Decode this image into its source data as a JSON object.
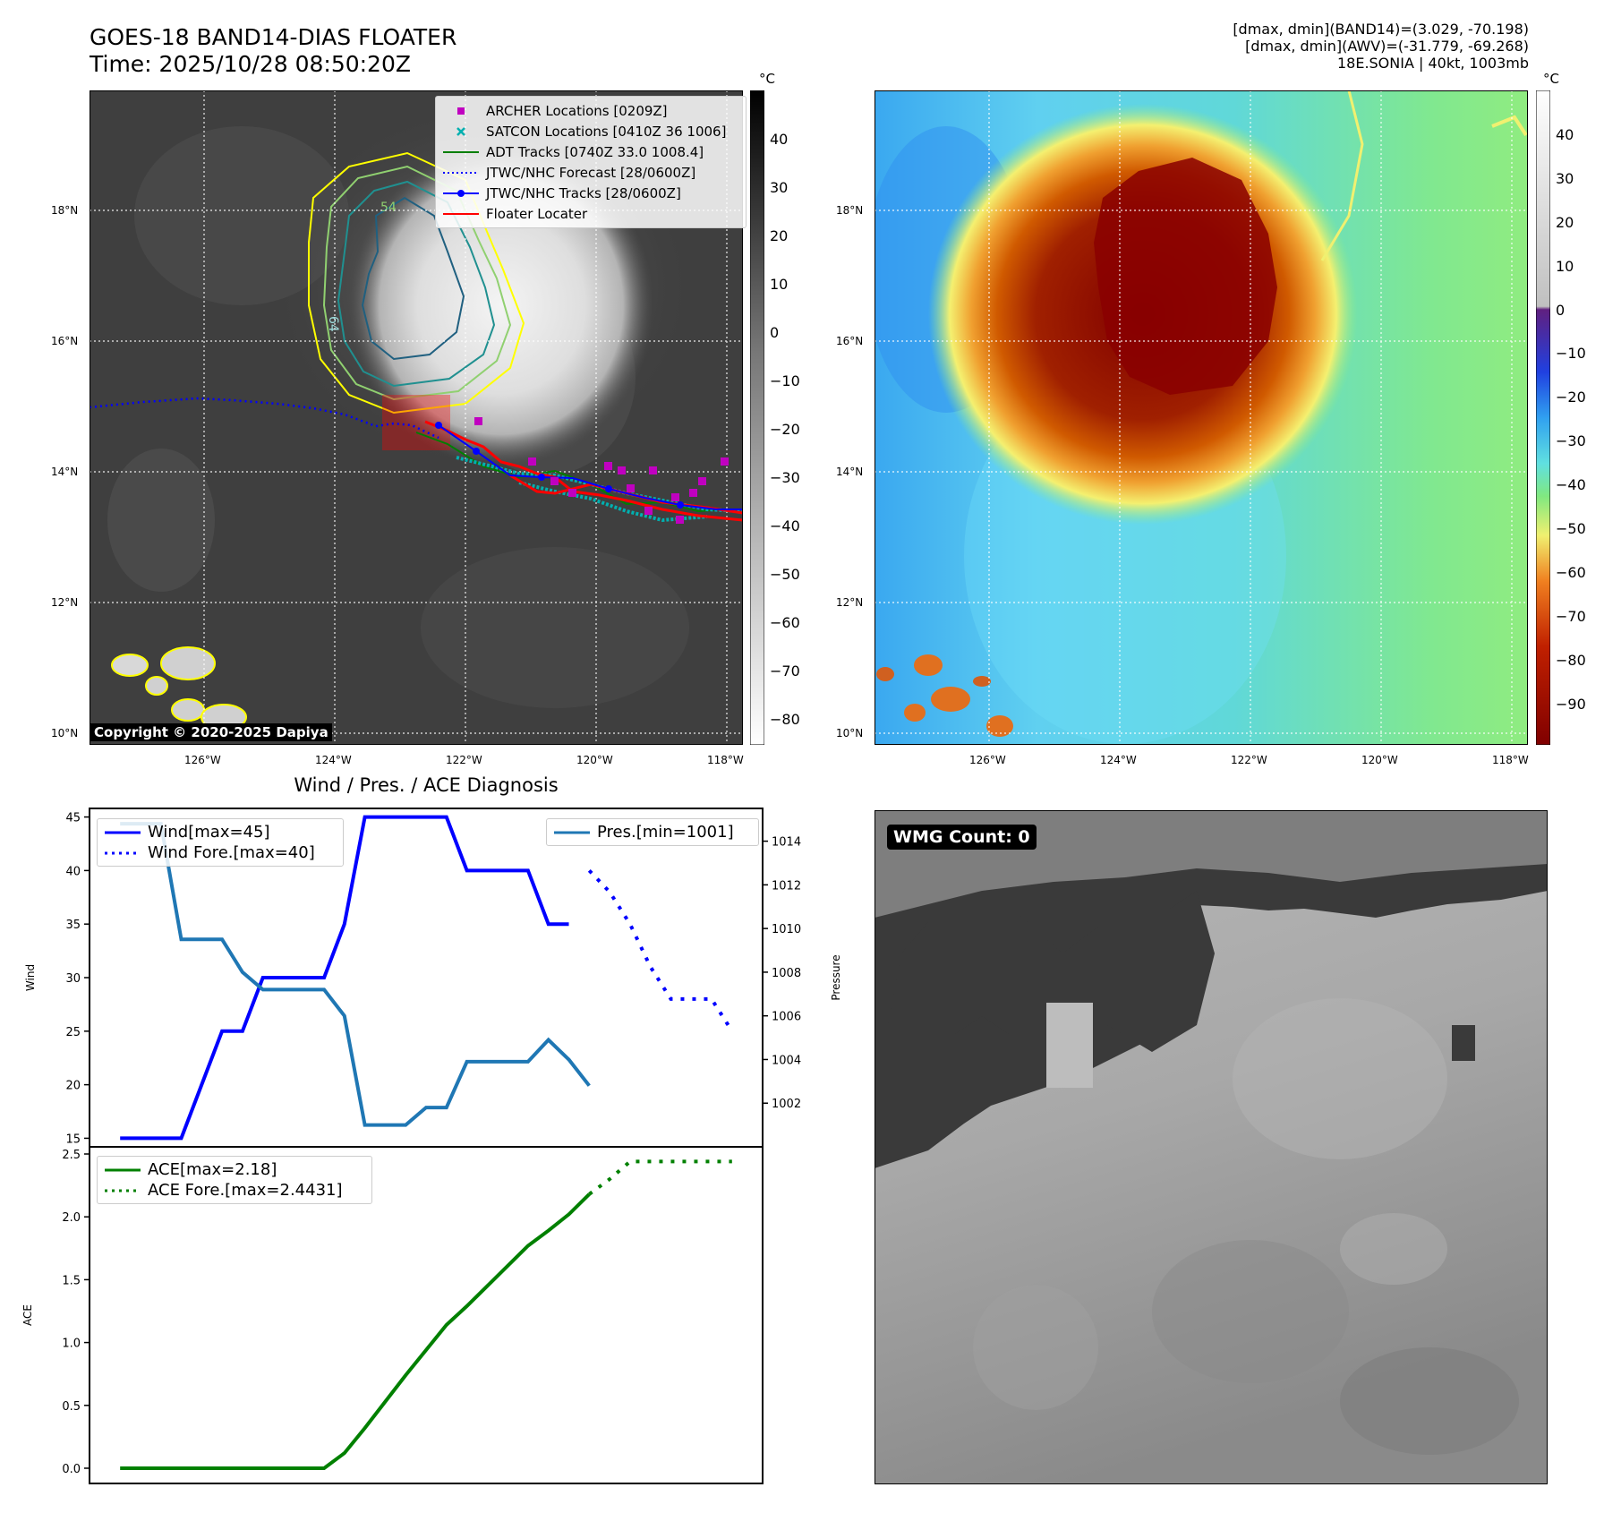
{
  "header": {
    "title": "GOES-18 BAND14-DIAS FLOATER",
    "time": "Time: 2025/10/28 08:50:20Z",
    "info_line1": "[dmax, dmin](BAND14)=(3.029, -70.198)",
    "info_line2": "[dmax, dmin](AWV)=(-31.779, -69.268)",
    "info_line3": "18E.SONIA | 40kt, 1003mb"
  },
  "map_axes": {
    "lat_labels": [
      "18°N",
      "16°N",
      "14°N",
      "12°N",
      "10°N"
    ],
    "lon_labels": [
      "126°W",
      "124°W",
      "122°W",
      "120°W",
      "118°W"
    ]
  },
  "ir_panel": {
    "colorbar_unit": "°C",
    "colorbar_ticks": [
      "40",
      "30",
      "20",
      "10",
      "0",
      "−10",
      "−20",
      "−30",
      "−40",
      "−50",
      "−60",
      "−70",
      "−80"
    ],
    "contour_labels": [
      "54",
      "64"
    ],
    "copyright": "Copyright © 2020-2025 Dapiya",
    "legend": [
      {
        "label": "ARCHER Locations [0209Z]",
        "color": "#c000c0",
        "symbol": "square"
      },
      {
        "label": "SATCON Locations [0410Z 36 1006]",
        "color": "#00b0b0",
        "symbol": "x"
      },
      {
        "label": "ADT Tracks [0740Z 33.0 1008.4]",
        "color": "#007f00",
        "symbol": "line"
      },
      {
        "label": "JTWC/NHC Forecast [28/0600Z]",
        "color": "#0000ff",
        "symbol": "dotted"
      },
      {
        "label": "JTWC/NHC Tracks [28/0600Z]",
        "color": "#0000ff",
        "symbol": "line-dot"
      },
      {
        "label": "Floater Locater",
        "color": "#ff0000",
        "symbol": "line"
      }
    ]
  },
  "wv_panel": {
    "colorbar_unit": "°C",
    "colorbar_ticks": [
      "40",
      "30",
      "20",
      "10",
      "0",
      "−10",
      "−20",
      "−30",
      "−40",
      "−50",
      "−60",
      "−70",
      "−80",
      "−90"
    ]
  },
  "diag_title": "Wind / Pres. / ACE Diagnosis",
  "wmg_label": "WMG Count: 0",
  "chart_data": [
    {
      "type": "line",
      "title": "Wind / Pres. / ACE Diagnosis",
      "ylabel": "Wind",
      "y2label": "Pressure",
      "ylim": [
        14.2,
        45.8
      ],
      "y2lim": [
        1000,
        1015.5
      ],
      "yticks": [
        "15",
        "20",
        "25",
        "30",
        "35",
        "40",
        "45"
      ],
      "y2ticks": [
        "1002",
        "1004",
        "1006",
        "1008",
        "1010",
        "1012",
        "1014"
      ],
      "xlim": [
        -1.5,
        31.5
      ],
      "series": [
        {
          "name": "Wind[max=45]",
          "color": "#0000ff",
          "style": "solid",
          "x": [
            0,
            3,
            5,
            6,
            7,
            8,
            9,
            10,
            11,
            12,
            13,
            14,
            15,
            16,
            17,
            18,
            19,
            20,
            21,
            22
          ],
          "values": [
            15,
            15,
            25,
            25,
            30,
            30,
            30,
            30,
            35,
            45,
            45,
            45,
            45,
            45,
            40,
            40,
            40,
            40,
            35,
            35
          ]
        },
        {
          "name": "Wind Fore.[max=40]",
          "color": "#0000ff",
          "style": "dotted",
          "x": [
            23,
            24,
            25,
            26,
            27,
            28,
            29,
            30
          ],
          "values": [
            40,
            38,
            35,
            31,
            28,
            28,
            28,
            25
          ]
        },
        {
          "name": "Pres.[min=1001]",
          "color": "#1f77b4",
          "style": "solid",
          "axis": "right",
          "x": [
            0,
            1.3,
            2,
            3,
            4,
            5,
            6,
            7,
            8,
            9,
            10,
            11,
            12,
            13,
            14,
            15,
            16,
            17,
            18,
            19,
            20,
            21,
            22,
            23
          ],
          "values": [
            1014.8,
            1014.8,
            1014.8,
            1009.5,
            1009.5,
            1009.5,
            1008,
            1007.2,
            1007.2,
            1007.2,
            1007.2,
            1006,
            1001,
            1001,
            1001,
            1001.8,
            1001.8,
            1003.9,
            1003.9,
            1003.9,
            1003.9,
            1004.9,
            1004,
            1002.8
          ]
        }
      ]
    },
    {
      "type": "line",
      "ylabel": "ACE",
      "ylim": [
        -0.05,
        2.5
      ],
      "yticks": [
        "0.0",
        "0.5",
        "1.0",
        "1.5",
        "2.0",
        "2.5"
      ],
      "xlim": [
        -1.5,
        31.5
      ],
      "series": [
        {
          "name": "ACE[max=2.18]",
          "color": "#008000",
          "style": "solid",
          "x": [
            0,
            10,
            11,
            12,
            13,
            14,
            15,
            16,
            17,
            18,
            19,
            20,
            21,
            22,
            23
          ],
          "values": [
            0,
            0,
            0.12,
            0.32,
            0.53,
            0.74,
            0.94,
            1.14,
            1.29,
            1.45,
            1.61,
            1.77,
            1.89,
            2.02,
            2.18
          ]
        },
        {
          "name": "ACE Fore.[max=2.4431]",
          "color": "#008000",
          "style": "dotted",
          "x": [
            23,
            24,
            25,
            26,
            27,
            28,
            29,
            30
          ],
          "values": [
            2.18,
            2.3,
            2.44,
            2.44,
            2.44,
            2.44,
            2.44,
            2.44
          ]
        }
      ]
    }
  ]
}
